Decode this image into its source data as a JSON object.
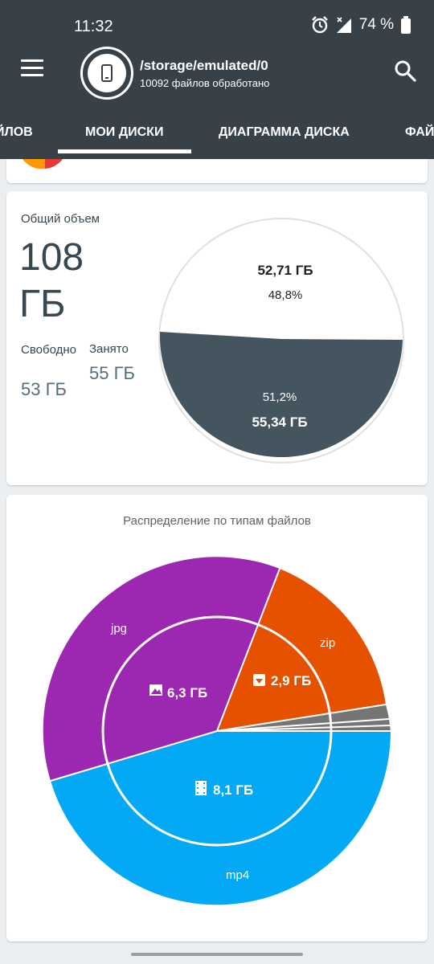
{
  "status_bar": {
    "time": "11:32",
    "battery": "74 %"
  },
  "app_bar": {
    "path": "/storage/emulated/0",
    "subtitle": "10092 файлов обработано",
    "icons": [
      "menu-icon",
      "device-icon",
      "search-icon"
    ]
  },
  "tabs": [
    {
      "label": "ЙЛОВ"
    },
    {
      "label": "МОИ ДИСКИ",
      "selected": true
    },
    {
      "label": "ДИАГРАММА ДИСКА"
    },
    {
      "label": "ФАЙ"
    }
  ],
  "storage": {
    "total_label": "Общий объем",
    "total_value": "108 ГБ",
    "free_label": "Свободно",
    "free_value": "53 ГБ",
    "used_label": "Занято",
    "used_value": "55 ГБ",
    "free_size": "52,71 ГБ",
    "free_percent": "48,8%",
    "used_percent": "51,2%",
    "used_size": "55,34 ГБ"
  },
  "file_types": {
    "title": "Распределение по типам файлов",
    "inner_labels": {
      "images": "6,3 ГБ",
      "archives": "2,9 ГБ",
      "video": "8,1 ГБ"
    },
    "outer_labels": {
      "jpg": "jpg",
      "zip": "zip",
      "mp4": "mp4"
    }
  },
  "colors": {
    "header": "#384148",
    "used": "#455560",
    "images": "#9c27b0",
    "archives": "#e65100",
    "video": "#03a9f4",
    "other": "#616161"
  },
  "chart_data": [
    {
      "type": "pie",
      "categories": [
        "Свободно",
        "Занято"
      ],
      "values": [
        48.8,
        51.2
      ],
      "labels": [
        "52,71 ГБ",
        "55,34 ГБ"
      ]
    },
    {
      "type": "pie",
      "title": "Распределение по типам файлов",
      "inner": {
        "categories": [
          "images",
          "archives",
          "video"
        ],
        "values": [
          6.3,
          2.9,
          8.1
        ]
      },
      "outer": {
        "categories": [
          "jpg",
          "zip",
          "",
          "",
          "",
          "mp4"
        ],
        "values": [
          6.3,
          2.6,
          0.15,
          0.1,
          0.05,
          8.1
        ]
      }
    }
  ]
}
